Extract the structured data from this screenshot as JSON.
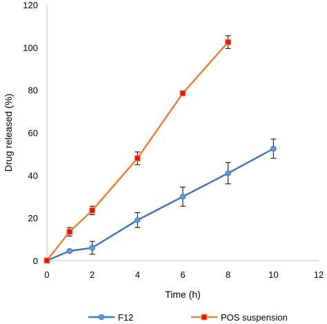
{
  "chart_data": {
    "type": "line",
    "xlabel": "Time (h)",
    "ylabel": "Drug released (%)",
    "xlim": [
      0,
      12
    ],
    "ylim": [
      0,
      120
    ],
    "xticks": [
      0,
      2,
      4,
      6,
      8,
      10,
      12
    ],
    "yticks": [
      0,
      20,
      40,
      60,
      80,
      100,
      120
    ],
    "grid": false,
    "legend_position": "bottom",
    "series": [
      {
        "name": "F12",
        "color": "#4472C4",
        "marker_color": "#5B9BD5",
        "marker": "circle",
        "x": [
          0,
          1,
          2,
          4,
          6,
          8,
          10
        ],
        "y": [
          0,
          4.5,
          6,
          19,
          30,
          41,
          52.5
        ],
        "error": [
          0,
          0.5,
          3,
          3.5,
          4.5,
          5,
          4.5
        ]
      },
      {
        "name": "POS suspension",
        "color": "#ED7D31",
        "marker_color": "#E81010",
        "marker": "square",
        "x": [
          0,
          1,
          2,
          4,
          6,
          8
        ],
        "y": [
          0,
          13.5,
          23.5,
          48,
          78.5,
          102.5
        ],
        "error": [
          0,
          2,
          2,
          3,
          0.5,
          3
        ]
      }
    ]
  }
}
